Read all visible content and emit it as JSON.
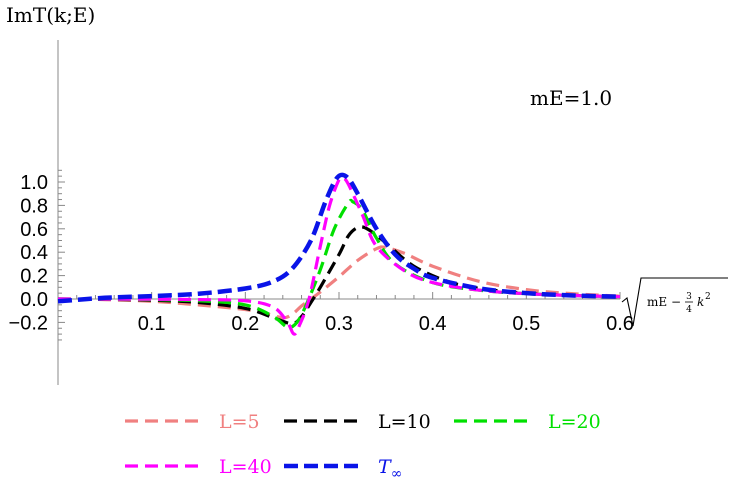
{
  "chart_data": {
    "type": "line",
    "ylabel": "ImT(k;E)",
    "xlabel_parts": {
      "radicand": "mE −",
      "frac_num": "3",
      "frac_den": "4",
      "var": "k",
      "exp": "2"
    },
    "annotation": "mE=1.0",
    "xlim": [
      0.0,
      0.6
    ],
    "ylim": [
      -0.33,
      1.1
    ],
    "x_ticks": [
      {
        "value": 0.1,
        "label": "0.1"
      },
      {
        "value": 0.2,
        "label": "0.2"
      },
      {
        "value": 0.3,
        "label": "0.3"
      },
      {
        "value": 0.4,
        "label": "0.4"
      },
      {
        "value": 0.5,
        "label": "0.5"
      },
      {
        "value": 0.6,
        "label": "0.6"
      }
    ],
    "y_ticks": [
      {
        "value": -0.2,
        "label": "−0.2"
      },
      {
        "value": 0.0,
        "label": "0.0"
      },
      {
        "value": 0.2,
        "label": "0.2"
      },
      {
        "value": 0.4,
        "label": "0.4"
      },
      {
        "value": 0.6,
        "label": "0.6"
      },
      {
        "value": 0.8,
        "label": "0.8"
      },
      {
        "value": 1.0,
        "label": "1.0"
      }
    ],
    "grid": false,
    "legend_position": "bottom",
    "series": [
      {
        "name": "L=5",
        "color": "#f08080",
        "dash": "dashed",
        "points": [
          [
            0.0,
            0.0
          ],
          [
            0.05,
            -0.005
          ],
          [
            0.1,
            -0.02
          ],
          [
            0.15,
            -0.05
          ],
          [
            0.2,
            -0.09
          ],
          [
            0.22,
            -0.12
          ],
          [
            0.24,
            -0.16
          ],
          [
            0.25,
            -0.13
          ],
          [
            0.26,
            -0.06
          ],
          [
            0.27,
            0.0
          ],
          [
            0.28,
            0.06
          ],
          [
            0.3,
            0.19
          ],
          [
            0.32,
            0.33
          ],
          [
            0.34,
            0.43
          ],
          [
            0.35,
            0.44
          ],
          [
            0.37,
            0.39
          ],
          [
            0.4,
            0.28
          ],
          [
            0.45,
            0.15
          ],
          [
            0.5,
            0.08
          ],
          [
            0.55,
            0.045
          ],
          [
            0.6,
            0.025
          ]
        ]
      },
      {
        "name": "L=10",
        "color": "#000000",
        "dash": "dashed",
        "points": [
          [
            0.0,
            0.0
          ],
          [
            0.05,
            -0.003
          ],
          [
            0.1,
            -0.01
          ],
          [
            0.15,
            -0.03
          ],
          [
            0.2,
            -0.08
          ],
          [
            0.23,
            -0.16
          ],
          [
            0.25,
            -0.21
          ],
          [
            0.26,
            -0.15
          ],
          [
            0.27,
            -0.03
          ],
          [
            0.28,
            0.1
          ],
          [
            0.3,
            0.38
          ],
          [
            0.31,
            0.54
          ],
          [
            0.32,
            0.61
          ],
          [
            0.33,
            0.6
          ],
          [
            0.35,
            0.48
          ],
          [
            0.38,
            0.28
          ],
          [
            0.42,
            0.14
          ],
          [
            0.46,
            0.08
          ],
          [
            0.5,
            0.05
          ],
          [
            0.55,
            0.03
          ],
          [
            0.6,
            0.02
          ]
        ]
      },
      {
        "name": "L=20",
        "color": "#00e000",
        "dash": "dashed",
        "points": [
          [
            0.0,
            0.0
          ],
          [
            0.05,
            -0.002
          ],
          [
            0.1,
            -0.005
          ],
          [
            0.15,
            -0.015
          ],
          [
            0.2,
            -0.05
          ],
          [
            0.23,
            -0.15
          ],
          [
            0.245,
            -0.24
          ],
          [
            0.255,
            -0.2
          ],
          [
            0.265,
            -0.05
          ],
          [
            0.28,
            0.25
          ],
          [
            0.295,
            0.6
          ],
          [
            0.31,
            0.82
          ],
          [
            0.315,
            0.83
          ],
          [
            0.325,
            0.76
          ],
          [
            0.34,
            0.52
          ],
          [
            0.36,
            0.3
          ],
          [
            0.4,
            0.14
          ],
          [
            0.45,
            0.075
          ],
          [
            0.5,
            0.045
          ],
          [
            0.55,
            0.03
          ],
          [
            0.6,
            0.02
          ]
        ]
      },
      {
        "name": "L=40",
        "color": "#ff00ff",
        "dash": "dashed",
        "points": [
          [
            0.0,
            0.0
          ],
          [
            0.05,
            -0.001
          ],
          [
            0.1,
            -0.002
          ],
          [
            0.15,
            -0.005
          ],
          [
            0.2,
            -0.015
          ],
          [
            0.23,
            -0.07
          ],
          [
            0.245,
            -0.2
          ],
          [
            0.252,
            -0.3
          ],
          [
            0.258,
            -0.22
          ],
          [
            0.268,
            0.0
          ],
          [
            0.28,
            0.45
          ],
          [
            0.29,
            0.8
          ],
          [
            0.3,
            1.02
          ],
          [
            0.305,
            1.03
          ],
          [
            0.31,
            0.98
          ],
          [
            0.325,
            0.72
          ],
          [
            0.34,
            0.45
          ],
          [
            0.37,
            0.24
          ],
          [
            0.4,
            0.14
          ],
          [
            0.45,
            0.075
          ],
          [
            0.5,
            0.045
          ],
          [
            0.55,
            0.03
          ],
          [
            0.6,
            0.02
          ]
        ]
      },
      {
        "name": "T_∞",
        "color": "#0a14e8",
        "dash": "dashed-thick",
        "points": [
          [
            0.0,
            -0.02
          ],
          [
            0.05,
            0.01
          ],
          [
            0.1,
            0.025
          ],
          [
            0.15,
            0.045
          ],
          [
            0.2,
            0.09
          ],
          [
            0.23,
            0.15
          ],
          [
            0.25,
            0.26
          ],
          [
            0.27,
            0.5
          ],
          [
            0.285,
            0.82
          ],
          [
            0.295,
            1.0
          ],
          [
            0.302,
            1.06
          ],
          [
            0.31,
            1.03
          ],
          [
            0.32,
            0.9
          ],
          [
            0.34,
            0.6
          ],
          [
            0.36,
            0.38
          ],
          [
            0.38,
            0.26
          ],
          [
            0.4,
            0.18
          ],
          [
            0.45,
            0.09
          ],
          [
            0.5,
            0.05
          ],
          [
            0.55,
            0.03
          ],
          [
            0.6,
            0.02
          ]
        ]
      }
    ],
    "legend": [
      {
        "label": "L=5",
        "color": "#f08080"
      },
      {
        "label": "L=10",
        "color": "#000000"
      },
      {
        "label": "L=20",
        "color": "#00e000"
      },
      {
        "label": "L=40",
        "color": "#ff00ff"
      },
      {
        "label_main": "T",
        "label_sub": "∞",
        "color": "#0a14e8"
      }
    ]
  }
}
